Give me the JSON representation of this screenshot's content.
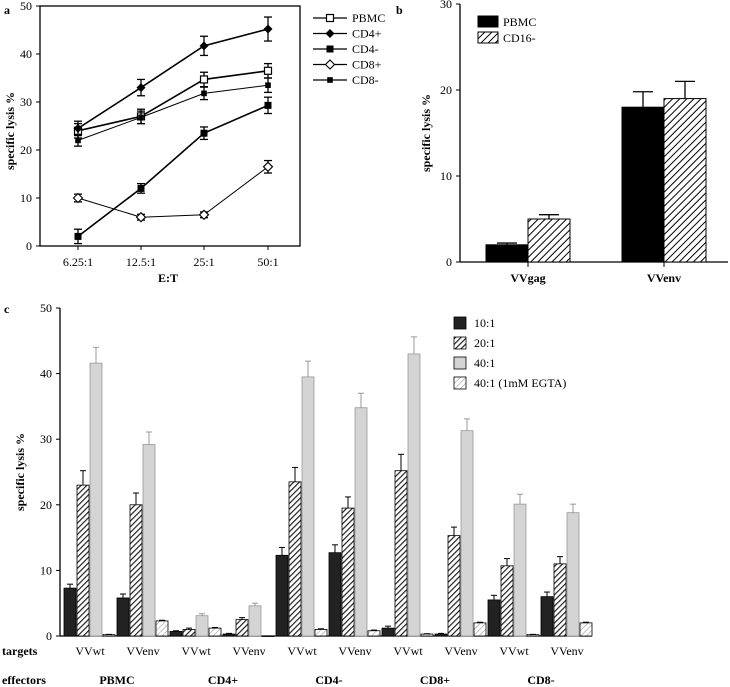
{
  "chart_data": [
    {
      "type": "line",
      "panel_label": "a",
      "xlabel": "E:T",
      "ylabel": "specific lysis %",
      "ylim": [
        0,
        50
      ],
      "yticks": [
        "0",
        "10",
        "20",
        "30",
        "40",
        "50"
      ],
      "categories": [
        "6.25:1",
        "12.5:1",
        "25:1",
        "50:1"
      ],
      "series": [
        {
          "name": "PBMC",
          "values": [
            24,
            27,
            34.7,
            36.5
          ],
          "errors": [
            1.5,
            1.5,
            1.5,
            1.5
          ],
          "marker": "open-square"
        },
        {
          "name": "CD4+",
          "values": [
            24.5,
            33,
            41.7,
            45.2
          ],
          "errors": [
            1.5,
            1.7,
            2,
            2.5
          ],
          "marker": "filled-diamond"
        },
        {
          "name": "CD4-",
          "values": [
            2,
            12,
            23.5,
            29.3
          ],
          "errors": [
            1.5,
            1,
            1.3,
            1.7
          ],
          "marker": "filled-square"
        },
        {
          "name": "CD8+",
          "values": [
            10,
            6,
            6.5,
            16.5
          ],
          "errors": [
            0.8,
            0.6,
            0.6,
            1.3
          ],
          "marker": "open-diamond"
        },
        {
          "name": "CD8-",
          "values": [
            22,
            26.8,
            31.8,
            33.5
          ],
          "errors": [
            1.2,
            1.3,
            1.3,
            1.5
          ],
          "marker": "small-filled-square"
        }
      ]
    },
    {
      "type": "bar",
      "panel_label": "b",
      "ylabel": "specific lysis %",
      "ylim": [
        0,
        30
      ],
      "yticks": [
        "0",
        "10",
        "20",
        "30"
      ],
      "categories": [
        "VVgag",
        "VVenv"
      ],
      "series": [
        {
          "name": "PBMC",
          "values": [
            2,
            18
          ],
          "errors": [
            0.2,
            1.8
          ],
          "fill": "solid-black"
        },
        {
          "name": "CD16-",
          "values": [
            5,
            19
          ],
          "errors": [
            0.5,
            2
          ],
          "fill": "hatched"
        }
      ]
    },
    {
      "type": "bar",
      "panel_label": "c",
      "ylabel": "specific lysis %",
      "ylim": [
        0,
        50
      ],
      "yticks": [
        "0",
        "10",
        "20",
        "30",
        "40",
        "50"
      ],
      "row_targets_label": "targets",
      "row_effectors_label": "effectors",
      "targets": [
        "VVwt",
        "VVenv",
        "VVwt",
        "VVenv",
        "VVwt",
        "VVenv",
        "VVwt",
        "VVenv",
        "VVwt",
        "VVenv"
      ],
      "effectors": [
        "PBMC",
        "CD4+",
        "CD4-",
        "CD8+",
        "CD8-"
      ],
      "series": [
        {
          "name": "10:1",
          "values": [
            7.3,
            5.8,
            0.7,
            0.3,
            12.3,
            12.7,
            1.2,
            0.3,
            5.5,
            6
          ],
          "errors": [
            0.6,
            0.6,
            0.1,
            0.1,
            1.2,
            1.2,
            0.3,
            0.1,
            0.7,
            0.7
          ],
          "fill": "black"
        },
        {
          "name": "20:1",
          "values": [
            23,
            20,
            1,
            2.5,
            23.5,
            19.5,
            25.2,
            15.3,
            10.7,
            11
          ],
          "errors": [
            2.2,
            1.8,
            0.2,
            0.3,
            2.2,
            1.7,
            2.5,
            1.3,
            1.1,
            1.1
          ],
          "fill": "dark-hatched"
        },
        {
          "name": "40:1",
          "values": [
            41.6,
            29.2,
            3.1,
            4.6,
            39.5,
            34.8,
            43,
            31.3,
            20.1,
            18.8
          ],
          "errors": [
            2.4,
            1.9,
            0.3,
            0.4,
            2.4,
            2.2,
            2.6,
            1.8,
            1.5,
            1.3
          ],
          "fill": "light-gray"
        },
        {
          "name": "40:1 (1mM EGTA)",
          "values": [
            0.2,
            2.3,
            1.2,
            0,
            1,
            0.8,
            0.3,
            2,
            0.2,
            2
          ],
          "errors": [
            0.05,
            0.1,
            0.1,
            0,
            0.1,
            0.1,
            0.05,
            0.1,
            0.05,
            0.1
          ],
          "fill": "light-hatched"
        }
      ]
    }
  ]
}
